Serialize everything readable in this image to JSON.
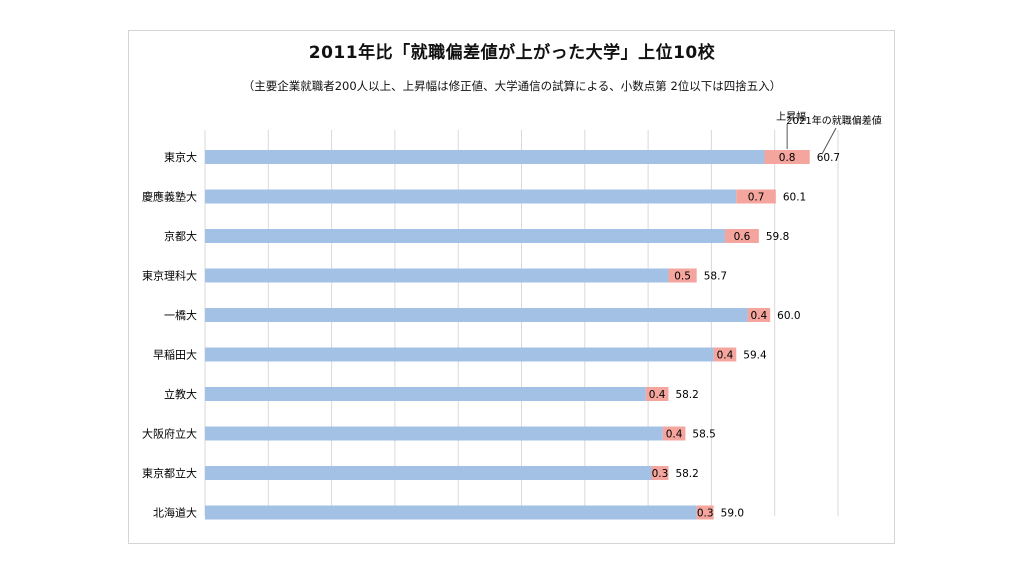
{
  "chart_data": {
    "type": "bar",
    "orientation": "horizontal",
    "stacked": true,
    "title": "2011年比「就職偏差値が上がった大学」上位10校",
    "subtitle": "（主要企業就職者200人以上、上昇幅は修正値、大学通信の試算による、小数点第 2位以下は四捨五入）",
    "categories": [
      "東京大",
      "慶應義塾大",
      "京都大",
      "東京理科大",
      "一橋大",
      "早稲田大",
      "立教大",
      "大阪府立大",
      "東京都立大",
      "北海道大"
    ],
    "series": [
      {
        "name": "",
        "color": "#a3c0e5",
        "values": [
          59.9,
          59.4,
          59.2,
          58.2,
          59.6,
          59.0,
          57.8,
          58.1,
          57.9,
          58.7
        ]
      },
      {
        "name": "上昇幅",
        "color": "#f4a59d",
        "values": [
          0.8,
          0.7,
          0.6,
          0.5,
          0.4,
          0.4,
          0.4,
          0.4,
          0.3,
          0.3
        ]
      }
    ],
    "segment_labels": [
      "0.8",
      "0.7",
      "0.6",
      "0.5",
      "0.4",
      "0.4",
      "0.4",
      "0.4",
      "0.3",
      "0.3"
    ],
    "total_labels": [
      "60.7",
      "60.1",
      "59.8",
      "58.7",
      "60.0",
      "59.4",
      "58.2",
      "58.5",
      "58.2",
      "59.0"
    ],
    "legend_labels": {
      "increase": "上昇幅",
      "total": "2021年の就職偏差値"
    },
    "grid": true,
    "axis_visible": false
  }
}
